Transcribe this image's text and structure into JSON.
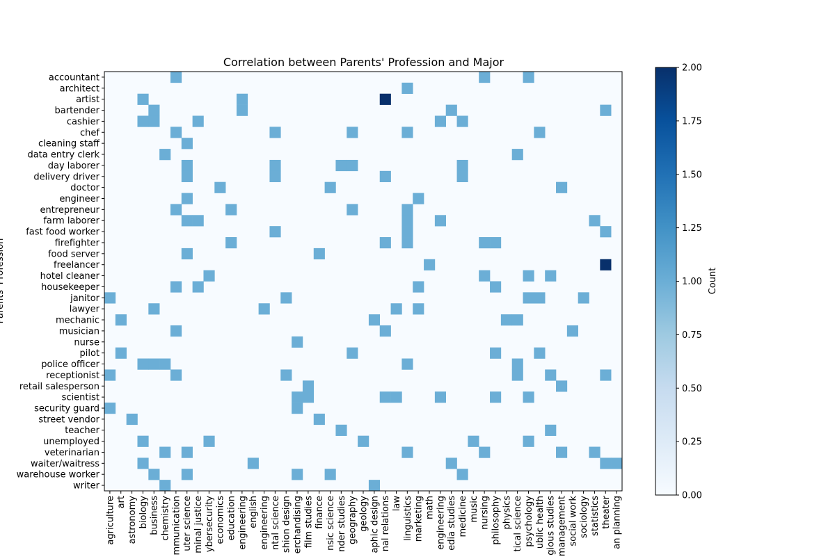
{
  "chart_data": {
    "type": "heatmap",
    "title": "Correlation between Parents' Profession and Major",
    "ylabel": "Parents' Profession",
    "xlabel": "",
    "colorbar_label": "Count",
    "colormap": "Blues",
    "vmin": 0,
    "vmax": 2,
    "colorbar_ticks": [
      "0.00",
      "0.25",
      "0.50",
      "0.75",
      "1.00",
      "1.25",
      "1.50",
      "1.75",
      "2.00"
    ],
    "colors": {
      "zero": "#f7fbff",
      "one": "#6baed6",
      "two": "#08306b"
    },
    "rows": [
      "accountant",
      "architect",
      "artist",
      "bartender",
      "cashier",
      "chef",
      "cleaning staff",
      "data entry clerk",
      "day laborer",
      "delivery driver",
      "doctor",
      "engineer",
      "entrepreneur",
      "farm laborer",
      "fast food worker",
      "firefighter",
      "food server",
      "freelancer",
      "hotel cleaner",
      "housekeeper",
      "janitor",
      "lawyer",
      "mechanic",
      "musician",
      "nurse",
      "pilot",
      "police officer",
      "receptionist",
      "retail salesperson",
      "scientist",
      "security guard",
      "street vendor",
      "teacher",
      "unemployed",
      "veterinarian",
      "waiter/waitress",
      "warehouse worker",
      "writer"
    ],
    "columns": [
      "agriculture",
      "art",
      "astronomy",
      "biology",
      "business",
      "chemistry",
      "communication",
      "computer science",
      "criminal justice",
      "cybersecurity",
      "economics",
      "education",
      "engineering",
      "english",
      "environmental engineering",
      "environmental science",
      "fashion design",
      "fashion merchandising",
      "film studies",
      "finance",
      "forensic science",
      "gender studies",
      "geography",
      "geology",
      "graphic design",
      "international relations",
      "law",
      "linguistics",
      "marketing",
      "math",
      "mechanical engineering",
      "media studies",
      "medicine",
      "music",
      "nursing",
      "philosophy",
      "physics",
      "political science",
      "psychology",
      "public health",
      "religious studies",
      "sales management",
      "social work",
      "sociology",
      "statistics",
      "theater",
      "urban planning"
    ],
    "x_tick_labels": [
      "agriculture",
      "art",
      "astronomy",
      "biology",
      "business",
      "chemistry",
      "mmunication",
      "uter science",
      "minal justice",
      "ybersecurity",
      "economics",
      "education",
      "engineering",
      "english",
      "engineering",
      "ntal science",
      "shion design",
      "erchandising",
      "film studies",
      "finance",
      "nsic science",
      "nder studies",
      "geography",
      "geology",
      "aphic design",
      "nal relations",
      "law",
      "linguistics",
      "marketing",
      "math",
      "engineering",
      "edia studies",
      "medicine",
      "music",
      "nursing",
      "philosophy",
      "physics",
      "tical science",
      "psychology",
      "ublic health",
      "gious studies",
      "management",
      "social work",
      "sociology",
      "statistics",
      "theater",
      "an planning"
    ],
    "y_label_visible": "Parents' Profession",
    "cells": [
      [
        "accountant",
        "communication",
        1
      ],
      [
        "accountant",
        "nursing",
        1
      ],
      [
        "accountant",
        "psychology",
        1
      ],
      [
        "architect",
        "linguistics",
        1
      ],
      [
        "artist",
        "biology",
        1
      ],
      [
        "artist",
        "engineering",
        1
      ],
      [
        "artist",
        "international relations",
        2
      ],
      [
        "bartender",
        "business",
        1
      ],
      [
        "bartender",
        "engineering",
        1
      ],
      [
        "bartender",
        "media studies",
        1
      ],
      [
        "bartender",
        "theater",
        1
      ],
      [
        "cashier",
        "biology",
        1
      ],
      [
        "cashier",
        "business",
        1
      ],
      [
        "cashier",
        "criminal justice",
        1
      ],
      [
        "cashier",
        "mechanical engineering",
        1
      ],
      [
        "cashier",
        "medicine",
        1
      ],
      [
        "chef",
        "communication",
        1
      ],
      [
        "chef",
        "environmental science",
        1
      ],
      [
        "chef",
        "geography",
        1
      ],
      [
        "chef",
        "linguistics",
        1
      ],
      [
        "chef",
        "public health",
        1
      ],
      [
        "cleaning staff",
        "computer science",
        1
      ],
      [
        "data entry clerk",
        "chemistry",
        1
      ],
      [
        "data entry clerk",
        "political science",
        1
      ],
      [
        "day laborer",
        "computer science",
        1
      ],
      [
        "day laborer",
        "environmental science",
        1
      ],
      [
        "day laborer",
        "gender studies",
        1
      ],
      [
        "day laborer",
        "geography",
        1
      ],
      [
        "day laborer",
        "medicine",
        1
      ],
      [
        "delivery driver",
        "computer science",
        1
      ],
      [
        "delivery driver",
        "environmental science",
        1
      ],
      [
        "delivery driver",
        "international relations",
        1
      ],
      [
        "delivery driver",
        "medicine",
        1
      ],
      [
        "doctor",
        "economics",
        1
      ],
      [
        "doctor",
        "forensic science",
        1
      ],
      [
        "doctor",
        "sales management",
        1
      ],
      [
        "engineer",
        "computer science",
        1
      ],
      [
        "engineer",
        "marketing",
        1
      ],
      [
        "entrepreneur",
        "communication",
        1
      ],
      [
        "entrepreneur",
        "education",
        1
      ],
      [
        "entrepreneur",
        "geography",
        1
      ],
      [
        "entrepreneur",
        "linguistics",
        1
      ],
      [
        "farm laborer",
        "computer science",
        1
      ],
      [
        "farm laborer",
        "criminal justice",
        1
      ],
      [
        "farm laborer",
        "linguistics",
        1
      ],
      [
        "farm laborer",
        "mechanical engineering",
        1
      ],
      [
        "farm laborer",
        "statistics",
        1
      ],
      [
        "fast food worker",
        "environmental science",
        1
      ],
      [
        "fast food worker",
        "linguistics",
        1
      ],
      [
        "fast food worker",
        "theater",
        1
      ],
      [
        "firefighter",
        "education",
        1
      ],
      [
        "firefighter",
        "international relations",
        1
      ],
      [
        "firefighter",
        "linguistics",
        1
      ],
      [
        "firefighter",
        "nursing",
        1
      ],
      [
        "firefighter",
        "philosophy",
        1
      ],
      [
        "food server",
        "computer science",
        1
      ],
      [
        "food server",
        "finance",
        1
      ],
      [
        "freelancer",
        "math",
        1
      ],
      [
        "freelancer",
        "theater",
        2
      ],
      [
        "hotel cleaner",
        "cybersecurity",
        1
      ],
      [
        "hotel cleaner",
        "nursing",
        1
      ],
      [
        "hotel cleaner",
        "psychology",
        1
      ],
      [
        "hotel cleaner",
        "religious studies",
        1
      ],
      [
        "housekeeper",
        "communication",
        1
      ],
      [
        "housekeeper",
        "criminal justice",
        1
      ],
      [
        "housekeeper",
        "marketing",
        1
      ],
      [
        "housekeeper",
        "philosophy",
        1
      ],
      [
        "janitor",
        "agriculture",
        1
      ],
      [
        "janitor",
        "fashion design",
        1
      ],
      [
        "janitor",
        "psychology",
        1
      ],
      [
        "janitor",
        "public health",
        1
      ],
      [
        "janitor",
        "sociology",
        1
      ],
      [
        "lawyer",
        "business",
        1
      ],
      [
        "lawyer",
        "environmental engineering",
        1
      ],
      [
        "lawyer",
        "law",
        1
      ],
      [
        "lawyer",
        "marketing",
        1
      ],
      [
        "mechanic",
        "art",
        1
      ],
      [
        "mechanic",
        "graphic design",
        1
      ],
      [
        "mechanic",
        "physics",
        1
      ],
      [
        "mechanic",
        "political science",
        1
      ],
      [
        "musician",
        "communication",
        1
      ],
      [
        "musician",
        "international relations",
        1
      ],
      [
        "musician",
        "social work",
        1
      ],
      [
        "nurse",
        "fashion merchandising",
        1
      ],
      [
        "pilot",
        "art",
        1
      ],
      [
        "pilot",
        "geography",
        1
      ],
      [
        "pilot",
        "philosophy",
        1
      ],
      [
        "pilot",
        "public health",
        1
      ],
      [
        "police officer",
        "biology",
        1
      ],
      [
        "police officer",
        "business",
        1
      ],
      [
        "police officer",
        "chemistry",
        1
      ],
      [
        "police officer",
        "linguistics",
        1
      ],
      [
        "police officer",
        "political science",
        1
      ],
      [
        "receptionist",
        "agriculture",
        1
      ],
      [
        "receptionist",
        "communication",
        1
      ],
      [
        "receptionist",
        "fashion design",
        1
      ],
      [
        "receptionist",
        "political science",
        1
      ],
      [
        "receptionist",
        "religious studies",
        1
      ],
      [
        "receptionist",
        "theater",
        1
      ],
      [
        "retail salesperson",
        "film studies",
        1
      ],
      [
        "retail salesperson",
        "sales management",
        1
      ],
      [
        "scientist",
        "fashion merchandising",
        1
      ],
      [
        "scientist",
        "film studies",
        1
      ],
      [
        "scientist",
        "international relations",
        1
      ],
      [
        "scientist",
        "law",
        1
      ],
      [
        "scientist",
        "mechanical engineering",
        1
      ],
      [
        "scientist",
        "philosophy",
        1
      ],
      [
        "scientist",
        "psychology",
        1
      ],
      [
        "security guard",
        "agriculture",
        1
      ],
      [
        "security guard",
        "fashion merchandising",
        1
      ],
      [
        "street vendor",
        "astronomy",
        1
      ],
      [
        "street vendor",
        "finance",
        1
      ],
      [
        "teacher",
        "gender studies",
        1
      ],
      [
        "teacher",
        "religious studies",
        1
      ],
      [
        "unemployed",
        "biology",
        1
      ],
      [
        "unemployed",
        "cybersecurity",
        1
      ],
      [
        "unemployed",
        "geology",
        1
      ],
      [
        "unemployed",
        "music",
        1
      ],
      [
        "unemployed",
        "psychology",
        1
      ],
      [
        "veterinarian",
        "chemistry",
        1
      ],
      [
        "veterinarian",
        "computer science",
        1
      ],
      [
        "veterinarian",
        "linguistics",
        1
      ],
      [
        "veterinarian",
        "nursing",
        1
      ],
      [
        "veterinarian",
        "sales management",
        1
      ],
      [
        "veterinarian",
        "statistics",
        1
      ],
      [
        "waiter/waitress",
        "biology",
        1
      ],
      [
        "waiter/waitress",
        "english",
        1
      ],
      [
        "waiter/waitress",
        "media studies",
        1
      ],
      [
        "waiter/waitress",
        "theater",
        1
      ],
      [
        "waiter/waitress",
        "urban planning",
        1
      ],
      [
        "warehouse worker",
        "business",
        1
      ],
      [
        "warehouse worker",
        "computer science",
        1
      ],
      [
        "warehouse worker",
        "fashion merchandising",
        1
      ],
      [
        "warehouse worker",
        "forensic science",
        1
      ],
      [
        "warehouse worker",
        "medicine",
        1
      ],
      [
        "writer",
        "chemistry",
        1
      ],
      [
        "writer",
        "graphic design",
        1
      ]
    ]
  }
}
